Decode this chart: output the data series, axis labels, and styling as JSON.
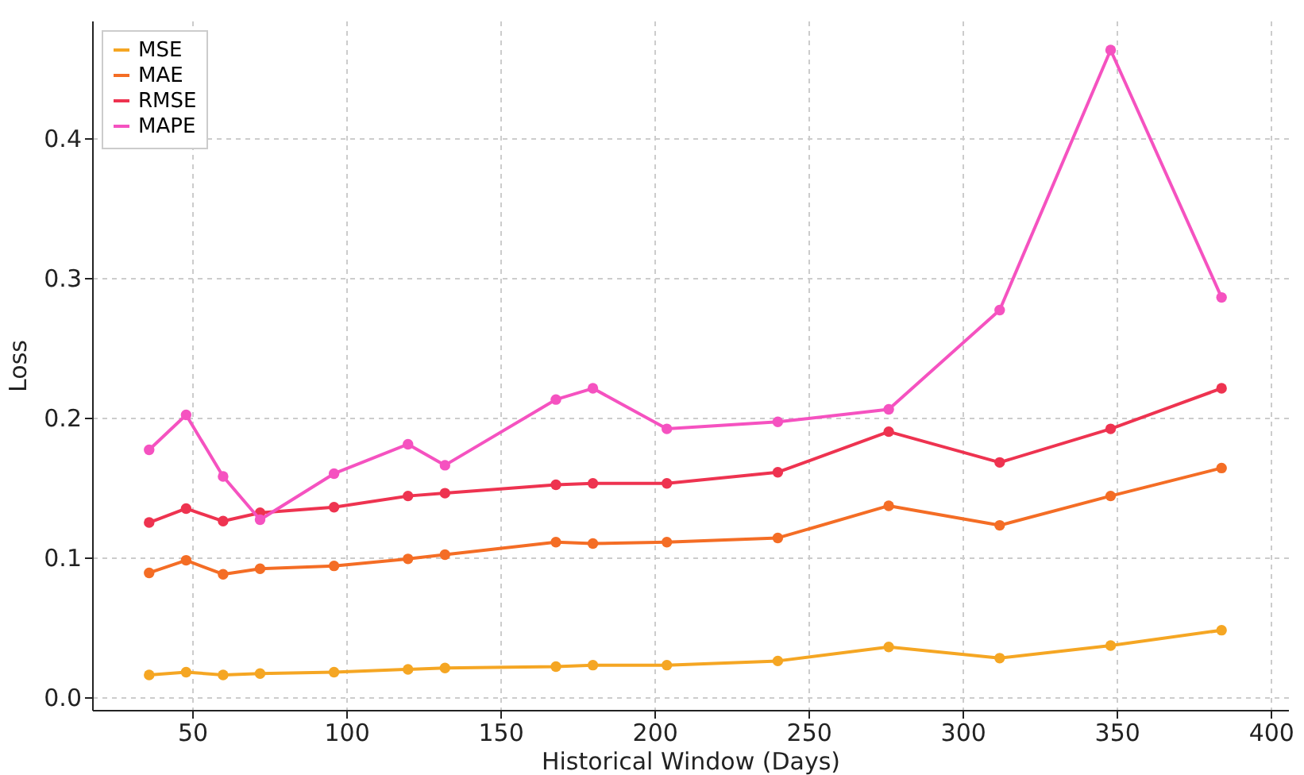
{
  "chart_data": {
    "type": "line",
    "xlabel": "Historical Window (Days)",
    "ylabel": "Loss",
    "x": [
      36,
      48,
      60,
      72,
      96,
      120,
      132,
      168,
      180,
      204,
      240,
      276,
      312,
      348,
      384
    ],
    "series": [
      {
        "name": "MSE",
        "color": "#f5a623",
        "values": [
          0.016,
          0.018,
          0.016,
          0.017,
          0.018,
          0.02,
          0.021,
          0.022,
          0.023,
          0.023,
          0.026,
          0.036,
          0.028,
          0.037,
          0.048
        ]
      },
      {
        "name": "MAE",
        "color": "#f46d25",
        "values": [
          0.089,
          0.098,
          0.088,
          0.092,
          0.094,
          0.099,
          0.102,
          0.111,
          0.11,
          0.111,
          0.114,
          0.137,
          0.123,
          0.144,
          0.164
        ]
      },
      {
        "name": "RMSE",
        "color": "#ee3350",
        "values": [
          0.125,
          0.135,
          0.126,
          0.132,
          0.136,
          0.144,
          0.146,
          0.152,
          0.153,
          0.153,
          0.161,
          0.19,
          0.168,
          0.192,
          0.221
        ]
      },
      {
        "name": "MAPE",
        "color": "#f552c0",
        "values": [
          0.177,
          0.202,
          0.158,
          0.127,
          0.16,
          0.181,
          0.166,
          0.213,
          0.221,
          0.192,
          0.197,
          0.206,
          0.277,
          0.463,
          0.286
        ]
      }
    ],
    "xlim": [
      17.5,
      405.6
    ],
    "ylim": [
      -0.009,
      0.484
    ],
    "xticks": [
      50,
      100,
      150,
      200,
      250,
      300,
      350,
      400
    ],
    "yticks": [
      {
        "value": 0,
        "label": "0.0"
      },
      0.1,
      0.2,
      0.3,
      0.4
    ],
    "grid": true,
    "legend": "top left",
    "marker": "circle",
    "line_style": "solid"
  }
}
